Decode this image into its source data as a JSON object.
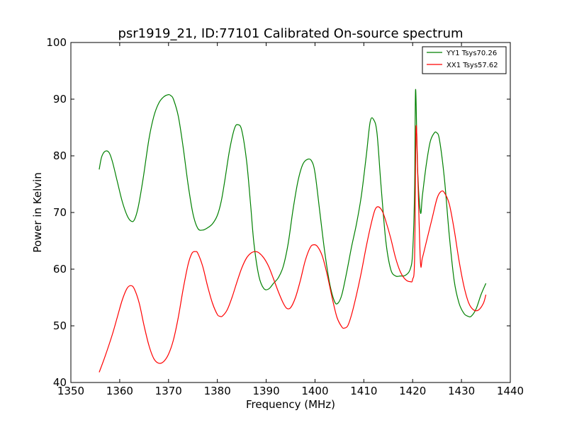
{
  "chart_data": {
    "type": "line",
    "title": "psr1919_21, ID:77101 Calibrated On-source spectrum",
    "xlabel": "Frequency (MHz)",
    "ylabel": "Power in Kelvin",
    "xlim": [
      1350,
      1440
    ],
    "ylim": [
      40,
      100
    ],
    "xticks": [
      "1350",
      "1360",
      "1370",
      "1380",
      "1390",
      "1400",
      "1410",
      "1420",
      "1430",
      "1440"
    ],
    "yticks": [
      "40",
      "50",
      "60",
      "70",
      "80",
      "90",
      "100"
    ],
    "grid": false,
    "legend_position": "top-right",
    "series": [
      {
        "name": "YY1 Tsys70.26",
        "color": "#008000",
        "x": [
          1355.8,
          1356.3,
          1357.0,
          1357.8,
          1358.5,
          1359.5,
          1360.5,
          1361.5,
          1362.3,
          1363.0,
          1363.8,
          1364.8,
          1366.0,
          1367.0,
          1368.0,
          1369.0,
          1370.0,
          1370.5,
          1371.0,
          1372.0,
          1373.0,
          1374.0,
          1375.0,
          1376.0,
          1377.0,
          1378.0,
          1379.0,
          1380.0,
          1380.8,
          1381.5,
          1382.5,
          1383.5,
          1384.2,
          1385.0,
          1386.0,
          1386.8,
          1387.5,
          1388.5,
          1389.5,
          1390.5,
          1391.5,
          1392.5,
          1393.5,
          1394.5,
          1395.5,
          1396.5,
          1397.5,
          1398.5,
          1399.3,
          1400.0,
          1401.0,
          1402.0,
          1403.0,
          1404.0,
          1404.7,
          1405.5,
          1406.5,
          1407.5,
          1408.5,
          1409.5,
          1410.5,
          1411.3,
          1412.0,
          1412.7,
          1413.5,
          1414.5,
          1415.5,
          1416.5,
          1417.5,
          1418.5,
          1419.5,
          1420.0,
          1420.4,
          1420.6,
          1421.0,
          1421.6,
          1422.0,
          1422.8,
          1423.6,
          1424.4,
          1424.9,
          1425.5,
          1426.5,
          1427.5,
          1428.5,
          1429.5,
          1430.5,
          1431.3,
          1432.0,
          1433.0,
          1434.0,
          1435.0
        ],
        "values": [
          77.6,
          79.8,
          80.8,
          80.6,
          79.0,
          75.5,
          72.0,
          69.5,
          68.5,
          68.7,
          71.0,
          76.0,
          83.0,
          87.0,
          89.3,
          90.4,
          90.8,
          90.6,
          90.0,
          87.0,
          81.5,
          75.0,
          69.8,
          67.2,
          66.9,
          67.3,
          68.0,
          69.5,
          72.0,
          75.5,
          81.0,
          84.8,
          85.5,
          84.5,
          79.0,
          71.5,
          64.5,
          58.8,
          56.6,
          56.5,
          57.5,
          58.5,
          60.5,
          64.5,
          70.5,
          75.5,
          78.5,
          79.4,
          79.1,
          77.0,
          70.0,
          63.0,
          57.5,
          54.3,
          54.0,
          55.5,
          59.5,
          64.0,
          68.0,
          73.0,
          80.0,
          86.0,
          86.4,
          84.0,
          75.0,
          65.0,
          60.0,
          58.8,
          58.8,
          58.9,
          60.0,
          63.0,
          74.0,
          91.7,
          78.0,
          70.0,
          73.0,
          78.5,
          82.5,
          84.0,
          84.1,
          82.8,
          76.0,
          66.0,
          58.0,
          54.0,
          52.2,
          51.7,
          51.7,
          53.0,
          55.5,
          57.5
        ]
      },
      {
        "name": "XX1 Tsys57.62",
        "color": "#ff0000",
        "x": [
          1355.8,
          1357.0,
          1358.5,
          1359.5,
          1360.5,
          1361.5,
          1362.3,
          1363.0,
          1364.0,
          1365.0,
          1366.0,
          1367.0,
          1368.0,
          1369.0,
          1370.0,
          1371.0,
          1372.0,
          1373.0,
          1374.0,
          1374.8,
          1375.5,
          1376.0,
          1377.0,
          1378.0,
          1379.0,
          1380.0,
          1380.5,
          1381.0,
          1382.0,
          1383.0,
          1384.0,
          1385.0,
          1386.0,
          1387.0,
          1387.8,
          1388.5,
          1389.5,
          1390.5,
          1391.5,
          1392.5,
          1393.5,
          1394.2,
          1395.0,
          1396.0,
          1397.0,
          1398.0,
          1399.0,
          1399.7,
          1400.5,
          1401.5,
          1402.5,
          1403.5,
          1404.5,
          1405.5,
          1406.0,
          1406.7,
          1407.5,
          1408.5,
          1409.5,
          1410.5,
          1411.5,
          1412.3,
          1413.0,
          1413.8,
          1414.5,
          1415.5,
          1416.5,
          1417.5,
          1418.5,
          1419.5,
          1420.0,
          1420.4,
          1420.7,
          1421.1,
          1421.6,
          1422.0,
          1423.0,
          1424.0,
          1425.0,
          1425.8,
          1426.5,
          1427.5,
          1428.5,
          1429.5,
          1430.5,
          1431.5,
          1432.5,
          1433.5,
          1434.5,
          1435.0
        ],
        "values": [
          41.8,
          44.6,
          48.5,
          51.5,
          54.5,
          56.6,
          57.1,
          56.5,
          54.0,
          50.0,
          46.5,
          44.2,
          43.4,
          43.7,
          45.0,
          47.5,
          51.5,
          56.5,
          60.8,
          62.8,
          63.1,
          62.8,
          60.5,
          57.0,
          54.0,
          52.0,
          51.7,
          51.7,
          52.8,
          55.0,
          57.7,
          60.2,
          62.0,
          62.9,
          63.1,
          62.9,
          62.0,
          60.5,
          58.3,
          56.0,
          54.0,
          53.1,
          53.2,
          55.0,
          58.0,
          61.5,
          63.8,
          64.3,
          64.0,
          62.3,
          59.0,
          55.0,
          51.5,
          49.8,
          49.6,
          50.0,
          52.0,
          55.5,
          59.5,
          64.0,
          68.0,
          70.5,
          71.0,
          70.2,
          68.5,
          65.5,
          62.0,
          59.5,
          58.2,
          57.8,
          58.2,
          62.0,
          85.0,
          75.0,
          61.2,
          62.0,
          65.5,
          69.0,
          72.5,
          73.7,
          73.5,
          71.5,
          67.0,
          61.5,
          57.0,
          54.0,
          52.8,
          52.8,
          54.0,
          55.5
        ]
      }
    ]
  }
}
